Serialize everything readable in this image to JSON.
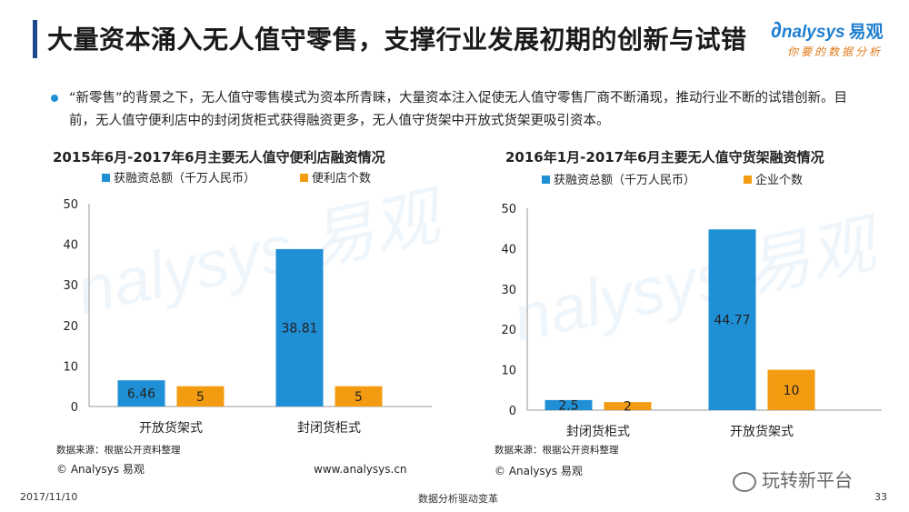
{
  "header": {
    "title": "大量资本涌入无人值守零售，支撑行业发展初期的创新与试错"
  },
  "logo": {
    "brand": "nalysys",
    "brand_cn": "易观",
    "tagline": "你要的数据分析"
  },
  "bullet": {
    "text": "“新零售”的背景之下，无人值守零售模式为资本所青睐，大量资本注入促使无人值守零售厂商不断涌现，推动行业不断的试错创新。目前，无人值守便利店中的封闭货柜式获得融资更多，无人值守货架中开放式货架更吸引资本。"
  },
  "colors": {
    "blue": "#1f8fd6",
    "orange": "#f39c12"
  },
  "chart_data": [
    {
      "type": "bar",
      "title": "2015年6月-2017年6月主要无人值守便利店融资情况",
      "categories": [
        "开放货架式",
        "封闭货柜式"
      ],
      "series": [
        {
          "name": "获融资总额（千万人民币）",
          "values": [
            6.46,
            38.81
          ],
          "color": "#1f8fd6"
        },
        {
          "name": "便利店个数",
          "values": [
            5,
            5
          ],
          "color": "#f39c12"
        }
      ],
      "ylim": [
        0,
        50
      ],
      "yticks": [
        "0",
        "10",
        "20",
        "30",
        "40",
        "50"
      ],
      "data_labels": [
        [
          "6.46",
          "38.81"
        ],
        [
          "5",
          "5"
        ]
      ],
      "source": "数据来源：根据公开资料整理",
      "footer_left": "© Analysys 易观",
      "footer_right": "www.analysys.cn"
    },
    {
      "type": "bar",
      "title": "2016年1月-2017年6月主要无人值守货架融资情况",
      "categories": [
        "封闭货柜式",
        "开放货架式"
      ],
      "series": [
        {
          "name": "获融资总额（千万人民币）",
          "values": [
            2.5,
            44.77
          ],
          "color": "#1f8fd6"
        },
        {
          "name": "企业个数",
          "values": [
            2,
            10
          ],
          "color": "#f39c12"
        }
      ],
      "ylim": [
        0,
        50
      ],
      "yticks": [
        "0",
        "10",
        "20",
        "30",
        "40",
        "50"
      ],
      "data_labels": [
        [
          "2.5",
          "44.77"
        ],
        [
          "2",
          "10"
        ]
      ],
      "source": "数据来源：根据公开资料整理",
      "footer_left": "© Analysys 易观"
    }
  ],
  "footer": {
    "date": "2017/11/10",
    "center": "数据分析驱动变革",
    "page": "33",
    "wechat": "玩转新平台"
  }
}
